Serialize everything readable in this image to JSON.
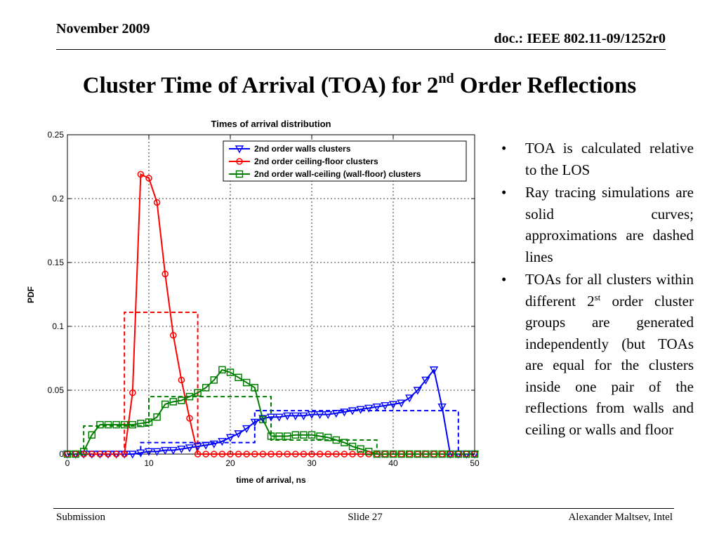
{
  "header": {
    "date": "November 2009",
    "doc": "doc.: IEEE 802.11-09/1252r0"
  },
  "slide": {
    "title_pre": "Cluster Time of Arrival (TOA) for 2",
    "title_sup": "nd",
    "title_post": " Order Reflections"
  },
  "bullets": {
    "b1": "TOA is calculated relative to the LOS",
    "b2": "Ray tracing simulations are solid curves; approximations are dashed lines",
    "b3_pre": "TOAs for all clusters within different 2",
    "b3_sup": "st",
    "b3_post": " order cluster groups are generated independently (but TOAs are equal for the clusters inside one pair of the reflections from walls and ceiling or walls and floor"
  },
  "footer": {
    "left": "Submission",
    "center": "Slide 27",
    "right": "Alexander Maltsev, Intel"
  },
  "chart_data": {
    "type": "line",
    "title": "Times of arrival distribution",
    "xlabel": "time of arrival, ns",
    "ylabel": "PDF",
    "xlim": [
      0,
      50
    ],
    "ylim": [
      0,
      0.25
    ],
    "xticks": [
      "0",
      "10",
      "20",
      "30",
      "40",
      "50"
    ],
    "yticks": [
      "0",
      "0.05",
      "0.1",
      "0.15",
      "0.2",
      "0.25"
    ],
    "grid": true,
    "legend_position": "top-right",
    "colors": {
      "walls": "#0000ff",
      "ceiling_floor": "#ff0000",
      "wall_ceiling": "#007f00"
    },
    "series": [
      {
        "name": "2nd order walls clusters",
        "color": "#0000ff",
        "marker": "triangle-down",
        "x": [
          0,
          1,
          2,
          3,
          4,
          5,
          6,
          7,
          8,
          9,
          10,
          11,
          12,
          13,
          14,
          15,
          16,
          17,
          18,
          19,
          20,
          21,
          22,
          23,
          24,
          25,
          26,
          27,
          28,
          29,
          30,
          31,
          32,
          33,
          34,
          35,
          36,
          37,
          38,
          39,
          40,
          41,
          42,
          43,
          44,
          45,
          46,
          47,
          48,
          49,
          50
        ],
        "y": [
          0,
          0,
          0,
          0,
          0,
          0,
          0,
          0,
          0,
          0.001,
          0.002,
          0.002,
          0.003,
          0.003,
          0.004,
          0.005,
          0.006,
          0.007,
          0.008,
          0.01,
          0.013,
          0.016,
          0.02,
          0.025,
          0.028,
          0.029,
          0.029,
          0.03,
          0.03,
          0.03,
          0.031,
          0.031,
          0.031,
          0.032,
          0.033,
          0.034,
          0.035,
          0.036,
          0.037,
          0.038,
          0.039,
          0.04,
          0.044,
          0.05,
          0.058,
          0.066,
          0.037,
          0,
          0,
          0,
          0
        ]
      },
      {
        "name": "2nd order ceiling-floor clusters",
        "color": "#ff0000",
        "marker": "circle",
        "x": [
          0,
          1,
          2,
          3,
          4,
          5,
          6,
          7,
          8,
          9,
          10,
          11,
          12,
          13,
          14,
          15,
          16,
          17,
          18,
          19,
          20,
          21,
          22,
          23,
          24,
          25,
          26,
          27,
          28,
          29,
          30,
          31,
          32,
          33,
          34,
          35,
          36,
          37,
          38,
          39,
          40,
          41,
          42,
          43,
          44,
          45,
          46,
          47,
          48,
          49,
          50
        ],
        "y": [
          0,
          0,
          0,
          0,
          0,
          0,
          0,
          0,
          0.048,
          0.219,
          0.216,
          0.197,
          0.141,
          0.093,
          0.058,
          0.028,
          0,
          0,
          0,
          0,
          0,
          0,
          0,
          0,
          0,
          0,
          0,
          0,
          0,
          0,
          0,
          0,
          0,
          0,
          0,
          0,
          0,
          0,
          0,
          0,
          0,
          0,
          0,
          0,
          0,
          0,
          0,
          0,
          0,
          0,
          0
        ]
      },
      {
        "name": "2nd order wall-ceiling (wall-floor) clusters",
        "color": "#007f00",
        "marker": "square",
        "x": [
          0,
          1,
          2,
          3,
          4,
          5,
          6,
          7,
          8,
          9,
          10,
          11,
          12,
          13,
          14,
          15,
          16,
          17,
          18,
          19,
          20,
          21,
          22,
          23,
          24,
          25,
          26,
          27,
          28,
          29,
          30,
          31,
          32,
          33,
          34,
          35,
          36,
          37,
          38,
          39,
          40,
          41,
          42,
          43,
          44,
          45,
          46,
          47,
          48,
          49,
          50
        ],
        "y": [
          0,
          0,
          0.002,
          0.015,
          0.023,
          0.023,
          0.023,
          0.023,
          0.023,
          0.024,
          0.025,
          0.029,
          0.039,
          0.041,
          0.042,
          0.045,
          0.048,
          0.052,
          0.058,
          0.066,
          0.064,
          0.06,
          0.056,
          0.052,
          0.027,
          0.014,
          0.014,
          0.014,
          0.015,
          0.015,
          0.015,
          0.014,
          0.013,
          0.011,
          0.009,
          0.006,
          0.004,
          0.002,
          0,
          0,
          0,
          0,
          0,
          0,
          0,
          0,
          0,
          0,
          0,
          0,
          0
        ]
      }
    ],
    "approximations": [
      {
        "color": "#0000ff",
        "x": [
          0,
          9,
          9,
          23,
          23,
          25,
          25,
          48,
          48,
          50
        ],
        "y": [
          0,
          0,
          0.009,
          0.009,
          0.034,
          0.034,
          0.034,
          0.034,
          0,
          0
        ]
      },
      {
        "color": "#ff0000",
        "x": [
          0,
          7,
          7,
          16,
          16,
          50
        ],
        "y": [
          0,
          0,
          0.111,
          0.111,
          0,
          0
        ]
      },
      {
        "color": "#007f00",
        "x": [
          0,
          2,
          2,
          10,
          10,
          25,
          25,
          38,
          38,
          50
        ],
        "y": [
          0,
          0,
          0.022,
          0.022,
          0.045,
          0.045,
          0.011,
          0.011,
          0,
          0
        ]
      }
    ]
  }
}
